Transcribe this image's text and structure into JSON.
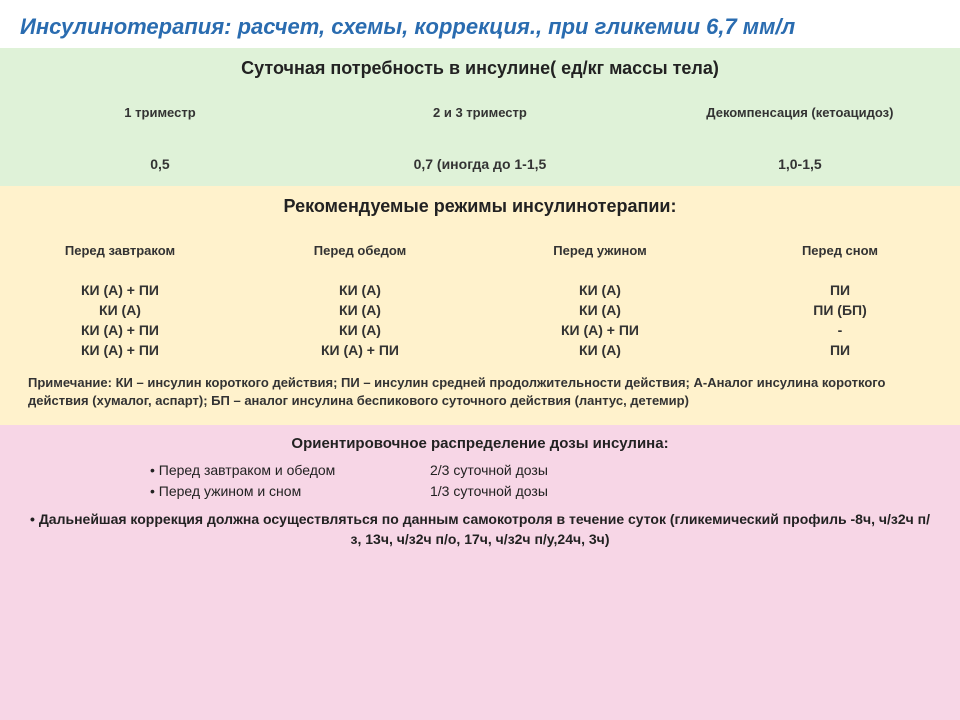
{
  "title": "Инсулинотерапия: расчет, схемы, коррекция., при гликемии 6,7 мм/л",
  "colors": {
    "title_color": "#2a6cb0",
    "green_bg": "#dff2d8",
    "yellow_bg": "#fff2cc",
    "pink_bg": "#f7d6e6",
    "text": "#222222"
  },
  "section1": {
    "heading": "Суточная потребность в инсулине( ед/кг массы тела)",
    "cols": [
      "1 триместр",
      "2 и 3 триместр",
      "Декомпенсация (кетоацидоз)"
    ],
    "vals": [
      "0,5",
      "0,7 (иногда до 1-1,5",
      "1,0-1,5"
    ]
  },
  "section2": {
    "heading": "Рекомендуемые режимы инсулинотерапии:",
    "cols": [
      "Перед завтраком",
      "Перед обедом",
      "Перед ужином",
      "Перед сном"
    ],
    "rows": [
      [
        "КИ (А) + ПИ",
        "КИ (А)",
        "КИ (А)",
        "ПИ"
      ],
      [
        "КИ (А)",
        "КИ (А)",
        "КИ (А)",
        "ПИ (БП)"
      ],
      [
        "КИ (А) + ПИ",
        "КИ (А)",
        "КИ (А) + ПИ",
        "-"
      ],
      [
        "КИ (А) + ПИ",
        "КИ (А) + ПИ",
        "КИ (А)",
        "ПИ"
      ]
    ],
    "note": "Примечание: КИ – инсулин короткого действия; ПИ – инсулин средней продолжительности действия; А-Аналог инсулина короткого действия (хумалог, аспарт); БП – аналог инсулина беспикового суточного действия (лантус, детемир)"
  },
  "section3": {
    "heading": "Ориентировочное распределение дозы инсулина:",
    "items": [
      {
        "label": "Перед завтраком и обедом",
        "value": "2/3 суточной дозы"
      },
      {
        "label": "Перед  ужином  и сном",
        "value": "1/3 суточной дозы"
      }
    ],
    "final": "Дальнейшая коррекция должна осуществляться по данным самокотроля в течение суток (гликемический профиль -8ч, ч/з2ч п/з, 13ч, ч/з2ч п/о, 17ч, ч/з2ч п/у,24ч, 3ч)"
  }
}
